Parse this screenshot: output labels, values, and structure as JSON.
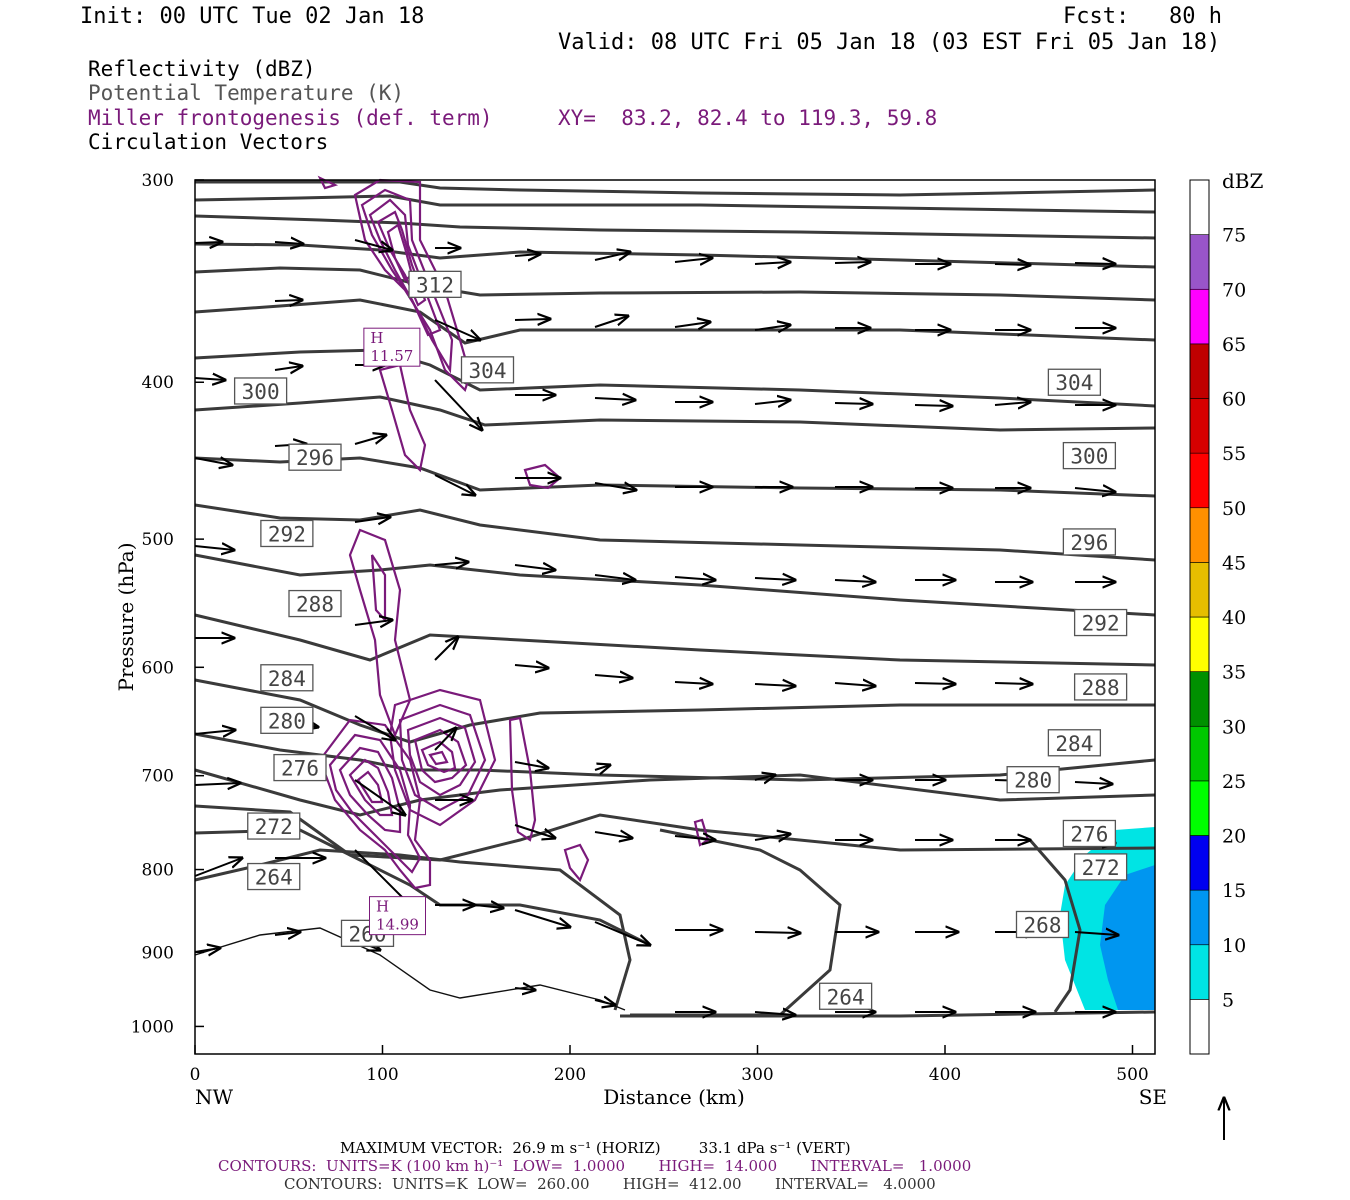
{
  "header": {
    "init": "Init: 00 UTC Tue 02 Jan 18",
    "fcst": "Fcst:   80 h",
    "valid": "Valid: 08 UTC Fri 05 Jan 18 (03 EST Fri 05 Jan 18)",
    "fields": [
      {
        "label": "Reflectivity (dBZ)",
        "color": "#000000"
      },
      {
        "label": "Potential Temperature (K)",
        "color": "#555555"
      },
      {
        "label": "Miller frontogenesis (def. term)",
        "color": "#7a1a7a"
      },
      {
        "label": "Circulation Vectors",
        "color": "#000000"
      }
    ],
    "xy": "XY=  83.2, 82.4 to 119.3, 59.8"
  },
  "chart_data": {
    "type": "cross-section",
    "xlabel": "Distance (km)",
    "ylabel": "Pressure (hPa)",
    "xlim": [
      0,
      512
    ],
    "ylim": [
      1040,
      300
    ],
    "y_log": true,
    "x_ticks": [
      0,
      100,
      200,
      300,
      400,
      500
    ],
    "y_ticks": [
      300,
      400,
      500,
      600,
      700,
      800,
      900,
      1000
    ],
    "x_end_labels": {
      "left": "NW",
      "right": "SE"
    },
    "colorbar": {
      "title": "dBZ",
      "levels": [
        5,
        10,
        15,
        20,
        25,
        30,
        35,
        40,
        45,
        50,
        55,
        60,
        65,
        70,
        75
      ],
      "colors": [
        "#ffffff",
        "#00e4e4",
        "#0096f0",
        "#0000f0",
        "#00ff00",
        "#00c800",
        "#009000",
        "#ffff00",
        "#e6be00",
        "#ff9000",
        "#ff0000",
        "#d60000",
        "#c00000",
        "#ff00ff",
        "#9955c9",
        "#ffffff"
      ]
    },
    "theta_labels": [
      {
        "v": "312",
        "x": 128,
        "p": 348
      },
      {
        "v": "304",
        "x": 156,
        "p": 393
      },
      {
        "v": "300",
        "x": 35,
        "p": 405
      },
      {
        "v": "304",
        "x": 469,
        "p": 400
      },
      {
        "v": "296",
        "x": 64,
        "p": 445
      },
      {
        "v": "300",
        "x": 477,
        "p": 444
      },
      {
        "v": "292",
        "x": 49,
        "p": 496
      },
      {
        "v": "296",
        "x": 477,
        "p": 502
      },
      {
        "v": "288",
        "x": 64,
        "p": 548
      },
      {
        "v": "292",
        "x": 483,
        "p": 563
      },
      {
        "v": "284",
        "x": 49,
        "p": 609
      },
      {
        "v": "288",
        "x": 483,
        "p": 617
      },
      {
        "v": "280",
        "x": 49,
        "p": 647
      },
      {
        "v": "284",
        "x": 469,
        "p": 668
      },
      {
        "v": "276",
        "x": 56,
        "p": 692
      },
      {
        "v": "280",
        "x": 447,
        "p": 704
      },
      {
        "v": "272",
        "x": 42,
        "p": 752
      },
      {
        "v": "276",
        "x": 477,
        "p": 760
      },
      {
        "v": "264",
        "x": 42,
        "p": 808
      },
      {
        "v": "272",
        "x": 483,
        "p": 797
      },
      {
        "v": "268",
        "x": 452,
        "p": 865
      },
      {
        "v": "260",
        "x": 92,
        "p": 876
      },
      {
        "v": "264",
        "x": 347,
        "p": 958
      }
    ],
    "maxima": [
      {
        "label": "H",
        "value": "11.57",
        "x": 105,
        "p": 380
      },
      {
        "label": "H",
        "value": "14.99",
        "x": 108,
        "p": 853
      }
    ],
    "footer": {
      "max_vector": "MAXIMUM VECTOR:  26.9 m s⁻¹ (HORIZ)        33.1 dPa s⁻¹ (VERT)",
      "contours1": "CONTOURS:  UNITS=K (100 km h)⁻¹  LOW=  1.0000       HIGH=  14.000       INTERVAL=   1.0000",
      "contours2": "CONTOURS:  UNITS=K  LOW=  260.00       HIGH=  412.00       INTERVAL=   4.0000"
    }
  }
}
